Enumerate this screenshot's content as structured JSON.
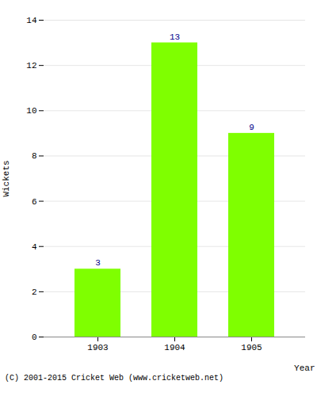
{
  "chart_data": {
    "type": "bar",
    "categories": [
      "1903",
      "1904",
      "1905"
    ],
    "values": [
      3,
      13,
      9
    ],
    "color": "#7fff00",
    "xlabel": "Year",
    "ylabel": "Wickets",
    "ylim": [
      0,
      14
    ],
    "yticks": [
      0,
      2,
      4,
      6,
      8,
      10,
      12,
      14
    ],
    "grid": true,
    "data_labels": true,
    "annotations": [
      "(C) 2001-2015 Cricket Web (www.cricketweb.net)"
    ]
  }
}
